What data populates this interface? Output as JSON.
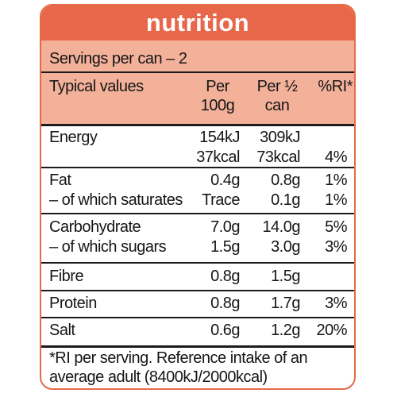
{
  "header": {
    "title": "nutrition"
  },
  "servings": "Servings per can – 2",
  "columns": {
    "label": "Typical values",
    "per100_line1": "Per",
    "per100_line2": "100g",
    "perhalf_line1": "Per ½",
    "perhalf_line2": "can",
    "ri": "%RI*"
  },
  "rows": {
    "energy": {
      "label": "Energy",
      "per100_kj": "154kJ",
      "per100_kcal": "37kcal",
      "perhalf_kj": "309kJ",
      "perhalf_kcal": "73kcal",
      "ri": "4%"
    },
    "fat": {
      "label": "Fat",
      "per100": "0.4g",
      "perhalf": "0.8g",
      "ri": "1%"
    },
    "saturates": {
      "label": "– of which saturates",
      "per100": "Trace",
      "perhalf": "0.1g",
      "ri": "1%"
    },
    "carbohydrate": {
      "label": "Carbohydrate",
      "per100": "7.0g",
      "perhalf": "14.0g",
      "ri": "5%"
    },
    "sugars": {
      "label": "– of which sugars",
      "per100": "1.5g",
      "perhalf": "3.0g",
      "ri": "3%"
    },
    "fibre": {
      "label": "Fibre",
      "per100": "0.8g",
      "perhalf": "1.5g",
      "ri": ""
    },
    "protein": {
      "label": "Protein",
      "per100": "0.8g",
      "perhalf": "1.7g",
      "ri": "3%"
    },
    "salt": {
      "label": "Salt",
      "per100": "0.6g",
      "perhalf": "1.2g",
      "ri": "20%"
    }
  },
  "footnote": {
    "line1": "*RI per serving. Reference intake of an",
    "line2": "average adult (8400kJ/2000kcal)"
  },
  "colors": {
    "header": "#e8674a",
    "band": "#f3b19a",
    "border": "#e56b45",
    "text": "#161616"
  }
}
